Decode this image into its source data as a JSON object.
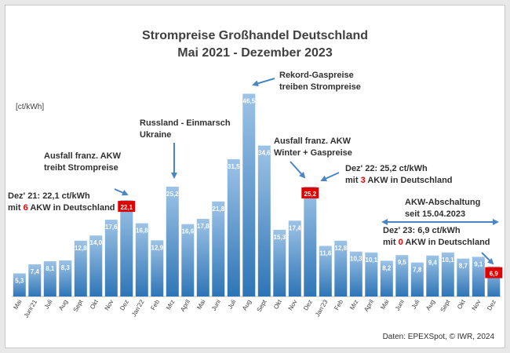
{
  "chart_data": {
    "type": "bar",
    "title": "Strompreise Großhandel Deutschland",
    "subtitle": "Mai 2021 - Dezember 2023",
    "ylabel": "[ct/kWh]",
    "xlabel": "",
    "ylim": [
      0,
      50
    ],
    "grid": false,
    "categories": [
      "Mai",
      "Juni'21",
      "Juli",
      "Aug",
      "Sept",
      "Okt",
      "Nov",
      "Dez",
      "Jan'22",
      "Feb",
      "Mrz",
      "April",
      "Mai",
      "Juni",
      "Juli",
      "Aug",
      "Sept",
      "Okt",
      "Nov",
      "Dez",
      "Jan'23",
      "Feb",
      "Mrz",
      "April",
      "Mai",
      "Juni",
      "Juli",
      "Aug",
      "Sept",
      "Okt",
      "Nov",
      "Dez"
    ],
    "values": [
      5.3,
      7.4,
      8.1,
      8.3,
      12.8,
      14.0,
      17.6,
      22.1,
      16.8,
      12.9,
      25.2,
      16.6,
      17.8,
      21.8,
      31.5,
      46.5,
      34.6,
      15.3,
      17.4,
      25.2,
      11.6,
      12.8,
      10.3,
      10.1,
      8.2,
      9.5,
      7.8,
      9.4,
      10.1,
      8.7,
      9.1,
      6.9
    ],
    "value_labels": [
      "5,3",
      "7,4",
      "8,1",
      "8,3",
      "12,8",
      "14,0",
      "17,6",
      "22,1",
      "16,8",
      "12,9",
      "25,2",
      "16,6",
      "17,8",
      "21,8",
      "31,5",
      "46,5",
      "34,6",
      "15,3",
      "17,4",
      "25,2",
      "11,6",
      "12,8",
      "10,3",
      "10,1",
      "8,2",
      "9,5",
      "7,8",
      "9,4",
      "10,1",
      "8,7",
      "9,1",
      "6,9"
    ],
    "highlighted_indices": [
      7,
      19,
      31
    ],
    "colors": {
      "bar_top": "#9dc3e6",
      "bar_bottom": "#2e75b6",
      "highlight_label_bg": "#e00000",
      "annotation_red": "#e00000",
      "text": "#404040"
    }
  },
  "annotations": {
    "dez21": {
      "line1_pre": "Dez' 21: 22,1 ct/kWh",
      "line2_pre": "mit ",
      "line2_red": "6",
      "line2_post": " AKW in Deutschland"
    },
    "ausfall1": {
      "line1": "Ausfall franz. AKW",
      "line2": "treibt Strompreise"
    },
    "russland": {
      "line1": "Russland - Einmarsch",
      "line2": "Ukraine"
    },
    "rekord": {
      "line1": "Rekord-Gaspreise",
      "line2": "treiben Strompreise"
    },
    "ausfall2": {
      "line1": "Ausfall franz. AKW",
      "line2": "Winter + Gaspreise"
    },
    "dez22": {
      "line1_pre": "Dez' 22: 25,2 ct/kWh",
      "line2_pre": "mit ",
      "line2_red": "3",
      "line2_post": " AKW in Deutschland"
    },
    "abschaltung": {
      "line1": "AKW-Abschaltung",
      "line2": "seit 15.04.2023"
    },
    "dez23": {
      "line1_pre": "Dez' 23: 6,9 ct/kWh",
      "line2_pre": "mit ",
      "line2_red": "0",
      "line2_post": " AKW in Deutschland"
    }
  },
  "source": "Daten: EPEXSpot, © IWR, 2024"
}
